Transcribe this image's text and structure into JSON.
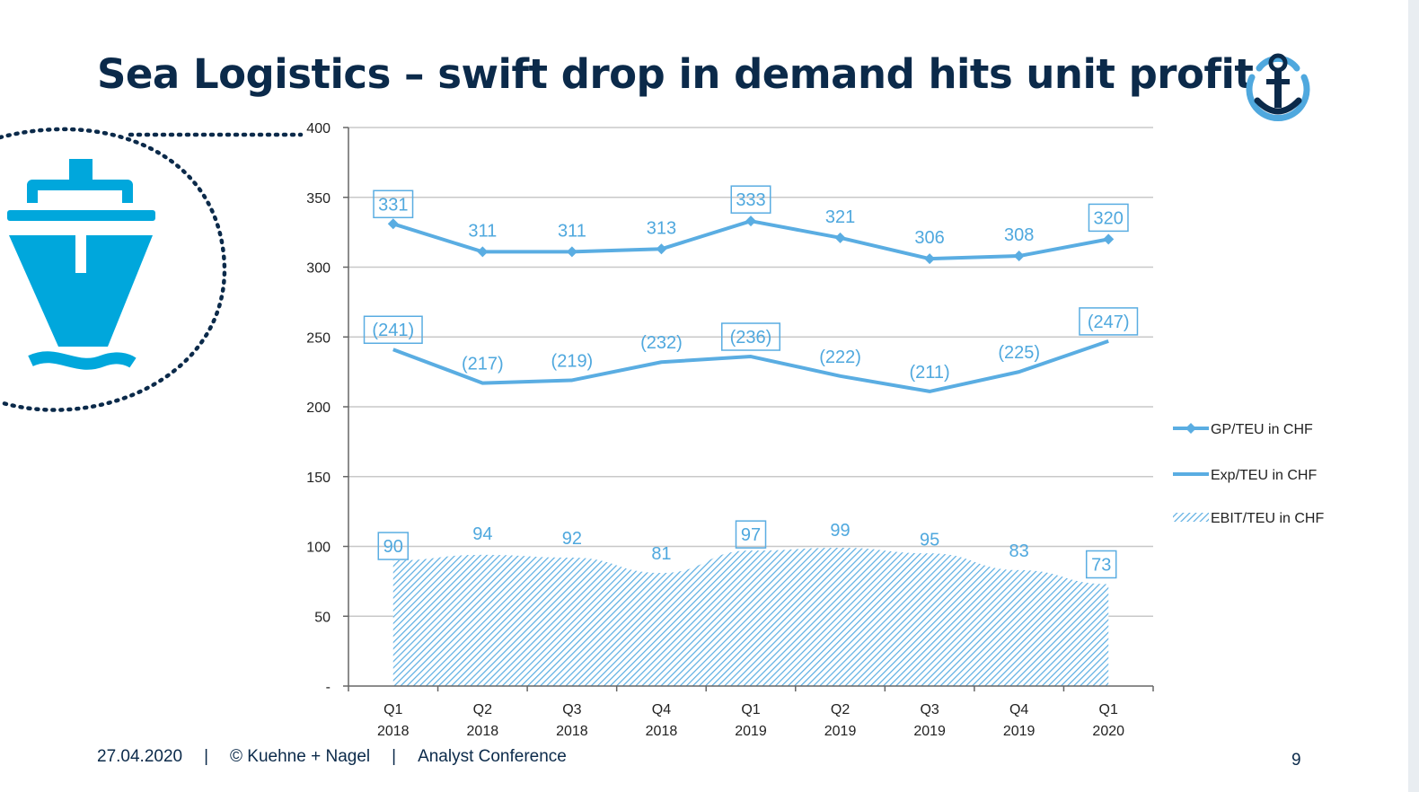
{
  "slide": {
    "title": "Sea Logistics – swift drop in demand hits unit profit",
    "footer": {
      "date": "27.04.2020",
      "separator": "|",
      "copyright": "© Kuehne + Nagel",
      "event": "Analyst Conference"
    },
    "page_number": "9",
    "icons": [
      "anchor-logo-icon",
      "container-ship-icon"
    ]
  },
  "chart_data": {
    "type": "line",
    "title": "",
    "xlabel": "",
    "ylabel": "",
    "categories": [
      [
        "Q1",
        "2018"
      ],
      [
        "Q2",
        "2018"
      ],
      [
        "Q3",
        "2018"
      ],
      [
        "Q4",
        "2018"
      ],
      [
        "Q1",
        "2019"
      ],
      [
        "Q2",
        "2019"
      ],
      [
        "Q3",
        "2019"
      ],
      [
        "Q4",
        "2019"
      ],
      [
        "Q1",
        "2020"
      ]
    ],
    "ylim": [
      0,
      400
    ],
    "yticks": [
      0,
      50,
      100,
      150,
      200,
      250,
      300,
      350,
      400
    ],
    "ytick_labels": [
      "-",
      "50",
      "100",
      "150",
      "200",
      "250",
      "300",
      "350",
      "400"
    ],
    "grid": true,
    "legend_position": "right",
    "color": "#5aade2",
    "series": [
      {
        "name": "GP/TEU in CHF",
        "style": "line-with-diamond-markers",
        "values": [
          331,
          311,
          311,
          313,
          333,
          321,
          306,
          308,
          320
        ],
        "labels": [
          "331",
          "311",
          "311",
          "313",
          "333",
          "321",
          "306",
          "308",
          "320"
        ],
        "boxed": [
          true,
          false,
          false,
          false,
          true,
          false,
          false,
          false,
          true
        ]
      },
      {
        "name": "Exp/TEU in CHF",
        "style": "line",
        "values": [
          241,
          217,
          219,
          232,
          236,
          222,
          211,
          225,
          247
        ],
        "labels": [
          "(241)",
          "(217)",
          "(219)",
          "(232)",
          "(236)",
          "(222)",
          "(211)",
          "(225)",
          "(247)"
        ],
        "boxed": [
          true,
          false,
          false,
          false,
          true,
          false,
          false,
          false,
          true
        ]
      },
      {
        "name": "EBIT/TEU in CHF",
        "style": "hatched-area",
        "values": [
          90,
          94,
          92,
          81,
          97,
          99,
          95,
          83,
          73
        ],
        "labels": [
          "90",
          "94",
          "92",
          "81",
          "97",
          "99",
          "95",
          "83",
          "73"
        ],
        "boxed": [
          true,
          false,
          false,
          false,
          true,
          false,
          false,
          false,
          true
        ]
      }
    ]
  }
}
